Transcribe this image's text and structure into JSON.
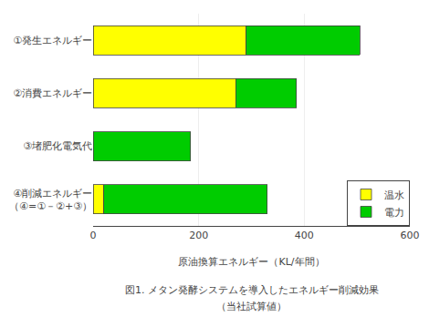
{
  "chart_data": {
    "type": "bar",
    "orientation": "horizontal",
    "stacked": true,
    "title": "図1. メタン発酵システムを導入したエネルギー削減効果",
    "subtitle": "（当社試算値）",
    "x_label": "原油換算エネルギー（KL/年間）",
    "categories": [
      "①発生エネルギー",
      "②消費エネルギー",
      "③堵肥化電気代",
      "④削減エネルギー\n（④=①－②+③）"
    ],
    "series": [
      {
        "name": "温水",
        "color": "#FFFF00",
        "values": [
          290,
          270,
          0,
          20
        ]
      },
      {
        "name": "電力",
        "color": "#00CC00",
        "values": [
          215,
          115,
          185,
          310
        ]
      }
    ],
    "xlim": [
      0,
      600
    ],
    "xticks": [
      0,
      200,
      400,
      600
    ],
    "grid": true,
    "legend": "lower right"
  }
}
